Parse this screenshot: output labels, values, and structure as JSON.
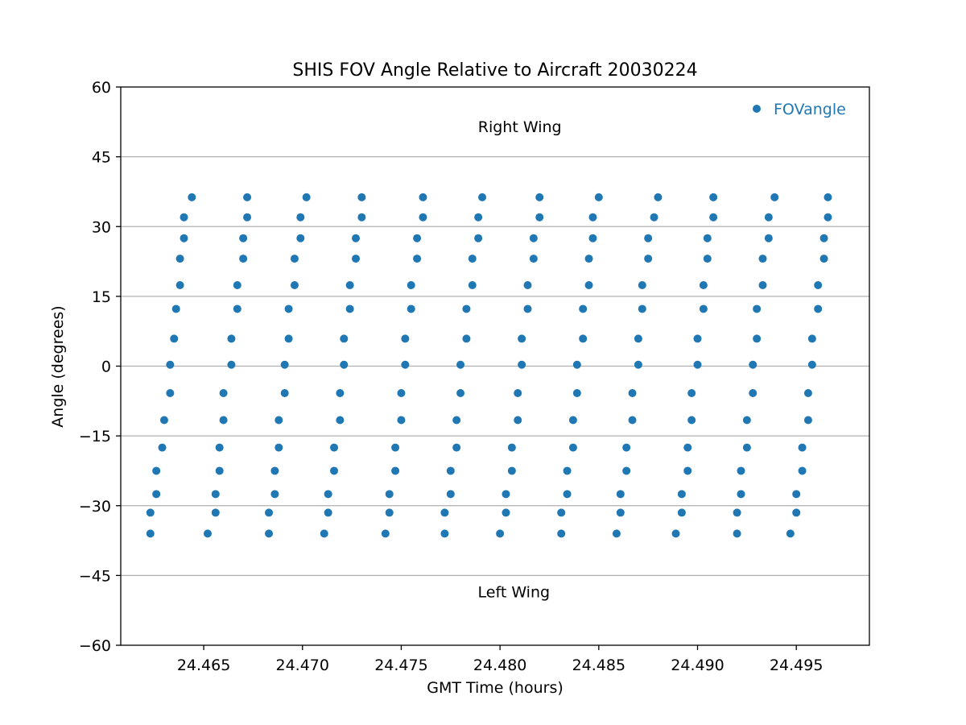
{
  "chart_data": {
    "type": "scatter",
    "title": "SHIS FOV Angle Relative to Aircraft 20030224",
    "xlabel": "GMT Time (hours)",
    "ylabel": "Angle (degrees)",
    "xlim": [
      24.4608,
      24.4987
    ],
    "ylim": [
      -60,
      60
    ],
    "xticks": [
      24.465,
      24.47,
      24.475,
      24.48,
      24.485,
      24.49,
      24.495
    ],
    "xtick_labels": [
      "24.465",
      "24.470",
      "24.475",
      "24.480",
      "24.485",
      "24.490",
      "24.495"
    ],
    "yticks": [
      -60,
      -45,
      -30,
      -15,
      0,
      15,
      30,
      45,
      60
    ],
    "ytick_labels": [
      "−60",
      "−45",
      "−30",
      "−15",
      "0",
      "15",
      "30",
      "45",
      "60"
    ],
    "grid": "horizontal",
    "legend_position": "top-right",
    "annotations": [
      {
        "text": "Right Wing",
        "x": 24.481,
        "y": 51.5
      },
      {
        "text": "Left Wing",
        "x": 24.4807,
        "y": -48.5
      }
    ],
    "series": [
      {
        "name": "FOVangle",
        "color": "#1f77b4",
        "points": [
          [
            24.4623,
            -36
          ],
          [
            24.4623,
            -31.5
          ],
          [
            24.4626,
            -27.5
          ],
          [
            24.4626,
            -22.5
          ],
          [
            24.4629,
            -17.5
          ],
          [
            24.463,
            -11.6
          ],
          [
            24.4633,
            -5.8
          ],
          [
            24.4633,
            0.3
          ],
          [
            24.4635,
            5.9
          ],
          [
            24.4636,
            12.3
          ],
          [
            24.4638,
            17.4
          ],
          [
            24.4638,
            23.1
          ],
          [
            24.464,
            27.5
          ],
          [
            24.464,
            32
          ],
          [
            24.4644,
            36.3
          ],
          [
            24.4652,
            -36
          ],
          [
            24.4656,
            -31.5
          ],
          [
            24.4656,
            -27.5
          ],
          [
            24.4658,
            -22.5
          ],
          [
            24.4658,
            -17.5
          ],
          [
            24.466,
            -11.6
          ],
          [
            24.466,
            -5.8
          ],
          [
            24.4664,
            0.3
          ],
          [
            24.4664,
            5.9
          ],
          [
            24.4667,
            12.3
          ],
          [
            24.4667,
            17.4
          ],
          [
            24.467,
            23.1
          ],
          [
            24.467,
            27.5
          ],
          [
            24.4672,
            32
          ],
          [
            24.4672,
            36.3
          ],
          [
            24.4683,
            -36
          ],
          [
            24.4683,
            -31.5
          ],
          [
            24.4686,
            -27.5
          ],
          [
            24.4686,
            -22.5
          ],
          [
            24.4688,
            -17.5
          ],
          [
            24.4688,
            -11.6
          ],
          [
            24.4691,
            -5.8
          ],
          [
            24.4691,
            0.3
          ],
          [
            24.4693,
            5.9
          ],
          [
            24.4693,
            12.3
          ],
          [
            24.4696,
            17.4
          ],
          [
            24.4696,
            23.1
          ],
          [
            24.4699,
            27.5
          ],
          [
            24.4699,
            32
          ],
          [
            24.4702,
            36.3
          ],
          [
            24.4711,
            -36
          ],
          [
            24.4713,
            -31.5
          ],
          [
            24.4713,
            -27.5
          ],
          [
            24.4716,
            -22.5
          ],
          [
            24.4716,
            -17.5
          ],
          [
            24.4719,
            -11.6
          ],
          [
            24.4719,
            -5.8
          ],
          [
            24.4721,
            0.3
          ],
          [
            24.4721,
            5.9
          ],
          [
            24.4724,
            12.3
          ],
          [
            24.4724,
            17.4
          ],
          [
            24.4727,
            23.1
          ],
          [
            24.4727,
            27.5
          ],
          [
            24.473,
            32
          ],
          [
            24.473,
            36.3
          ],
          [
            24.4742,
            -36
          ],
          [
            24.4744,
            -31.5
          ],
          [
            24.4744,
            -27.5
          ],
          [
            24.4747,
            -22.5
          ],
          [
            24.4747,
            -17.5
          ],
          [
            24.475,
            -11.6
          ],
          [
            24.475,
            -5.8
          ],
          [
            24.4752,
            0.3
          ],
          [
            24.4752,
            5.9
          ],
          [
            24.4755,
            12.3
          ],
          [
            24.4755,
            17.4
          ],
          [
            24.4758,
            23.1
          ],
          [
            24.4758,
            27.5
          ],
          [
            24.4761,
            32
          ],
          [
            24.4761,
            36.3
          ],
          [
            24.4772,
            -36
          ],
          [
            24.4772,
            -31.5
          ],
          [
            24.4775,
            -27.5
          ],
          [
            24.4775,
            -22.5
          ],
          [
            24.4778,
            -17.5
          ],
          [
            24.4778,
            -11.6
          ],
          [
            24.478,
            -5.8
          ],
          [
            24.478,
            0.3
          ],
          [
            24.4783,
            5.9
          ],
          [
            24.4783,
            12.3
          ],
          [
            24.4786,
            17.4
          ],
          [
            24.4786,
            23.1
          ],
          [
            24.4789,
            27.5
          ],
          [
            24.4789,
            32
          ],
          [
            24.4791,
            36.3
          ],
          [
            24.48,
            -36
          ],
          [
            24.4803,
            -31.5
          ],
          [
            24.4803,
            -27.5
          ],
          [
            24.4806,
            -22.5
          ],
          [
            24.4806,
            -17.5
          ],
          [
            24.4809,
            -11.6
          ],
          [
            24.4809,
            -5.8
          ],
          [
            24.4811,
            0.3
          ],
          [
            24.4811,
            5.9
          ],
          [
            24.4814,
            12.3
          ],
          [
            24.4814,
            17.4
          ],
          [
            24.4817,
            23.1
          ],
          [
            24.4817,
            27.5
          ],
          [
            24.482,
            32
          ],
          [
            24.482,
            36.3
          ],
          [
            24.4831,
            -36
          ],
          [
            24.4831,
            -31.5
          ],
          [
            24.4834,
            -27.5
          ],
          [
            24.4834,
            -22.5
          ],
          [
            24.4837,
            -17.5
          ],
          [
            24.4837,
            -11.6
          ],
          [
            24.4839,
            -5.8
          ],
          [
            24.4839,
            0.3
          ],
          [
            24.4842,
            5.9
          ],
          [
            24.4842,
            12.3
          ],
          [
            24.4845,
            17.4
          ],
          [
            24.4845,
            23.1
          ],
          [
            24.4847,
            27.5
          ],
          [
            24.4847,
            32
          ],
          [
            24.485,
            36.3
          ],
          [
            24.4859,
            -36
          ],
          [
            24.4861,
            -31.5
          ],
          [
            24.4861,
            -27.5
          ],
          [
            24.4864,
            -22.5
          ],
          [
            24.4864,
            -17.5
          ],
          [
            24.4867,
            -11.6
          ],
          [
            24.4867,
            -5.8
          ],
          [
            24.487,
            0.3
          ],
          [
            24.487,
            5.9
          ],
          [
            24.4872,
            12.3
          ],
          [
            24.4872,
            17.4
          ],
          [
            24.4875,
            23.1
          ],
          [
            24.4875,
            27.5
          ],
          [
            24.4878,
            32
          ],
          [
            24.488,
            36.3
          ],
          [
            24.4889,
            -36
          ],
          [
            24.4892,
            -31.5
          ],
          [
            24.4892,
            -27.5
          ],
          [
            24.4895,
            -22.5
          ],
          [
            24.4895,
            -17.5
          ],
          [
            24.4897,
            -11.6
          ],
          [
            24.4897,
            -5.8
          ],
          [
            24.49,
            0.3
          ],
          [
            24.49,
            5.9
          ],
          [
            24.4903,
            12.3
          ],
          [
            24.4903,
            17.4
          ],
          [
            24.4905,
            23.1
          ],
          [
            24.4905,
            27.5
          ],
          [
            24.4908,
            32
          ],
          [
            24.4908,
            36.3
          ],
          [
            24.492,
            -36
          ],
          [
            24.492,
            -31.5
          ],
          [
            24.4922,
            -27.5
          ],
          [
            24.4922,
            -22.5
          ],
          [
            24.4925,
            -17.5
          ],
          [
            24.4925,
            -11.6
          ],
          [
            24.4928,
            -5.8
          ],
          [
            24.4928,
            0.3
          ],
          [
            24.493,
            5.9
          ],
          [
            24.493,
            12.3
          ],
          [
            24.4933,
            17.4
          ],
          [
            24.4933,
            23.1
          ],
          [
            24.4936,
            27.5
          ],
          [
            24.4936,
            32
          ],
          [
            24.4939,
            36.3
          ],
          [
            24.4947,
            -36
          ],
          [
            24.495,
            -31.5
          ],
          [
            24.495,
            -27.5
          ],
          [
            24.4953,
            -22.5
          ],
          [
            24.4953,
            -17.5
          ],
          [
            24.4956,
            -11.6
          ],
          [
            24.4956,
            -5.8
          ],
          [
            24.4958,
            0.3
          ],
          [
            24.4958,
            5.9
          ],
          [
            24.4961,
            12.3
          ],
          [
            24.4961,
            17.4
          ],
          [
            24.4964,
            23.1
          ],
          [
            24.4964,
            27.5
          ],
          [
            24.4966,
            32
          ],
          [
            24.4966,
            36.3
          ]
        ]
      }
    ]
  }
}
